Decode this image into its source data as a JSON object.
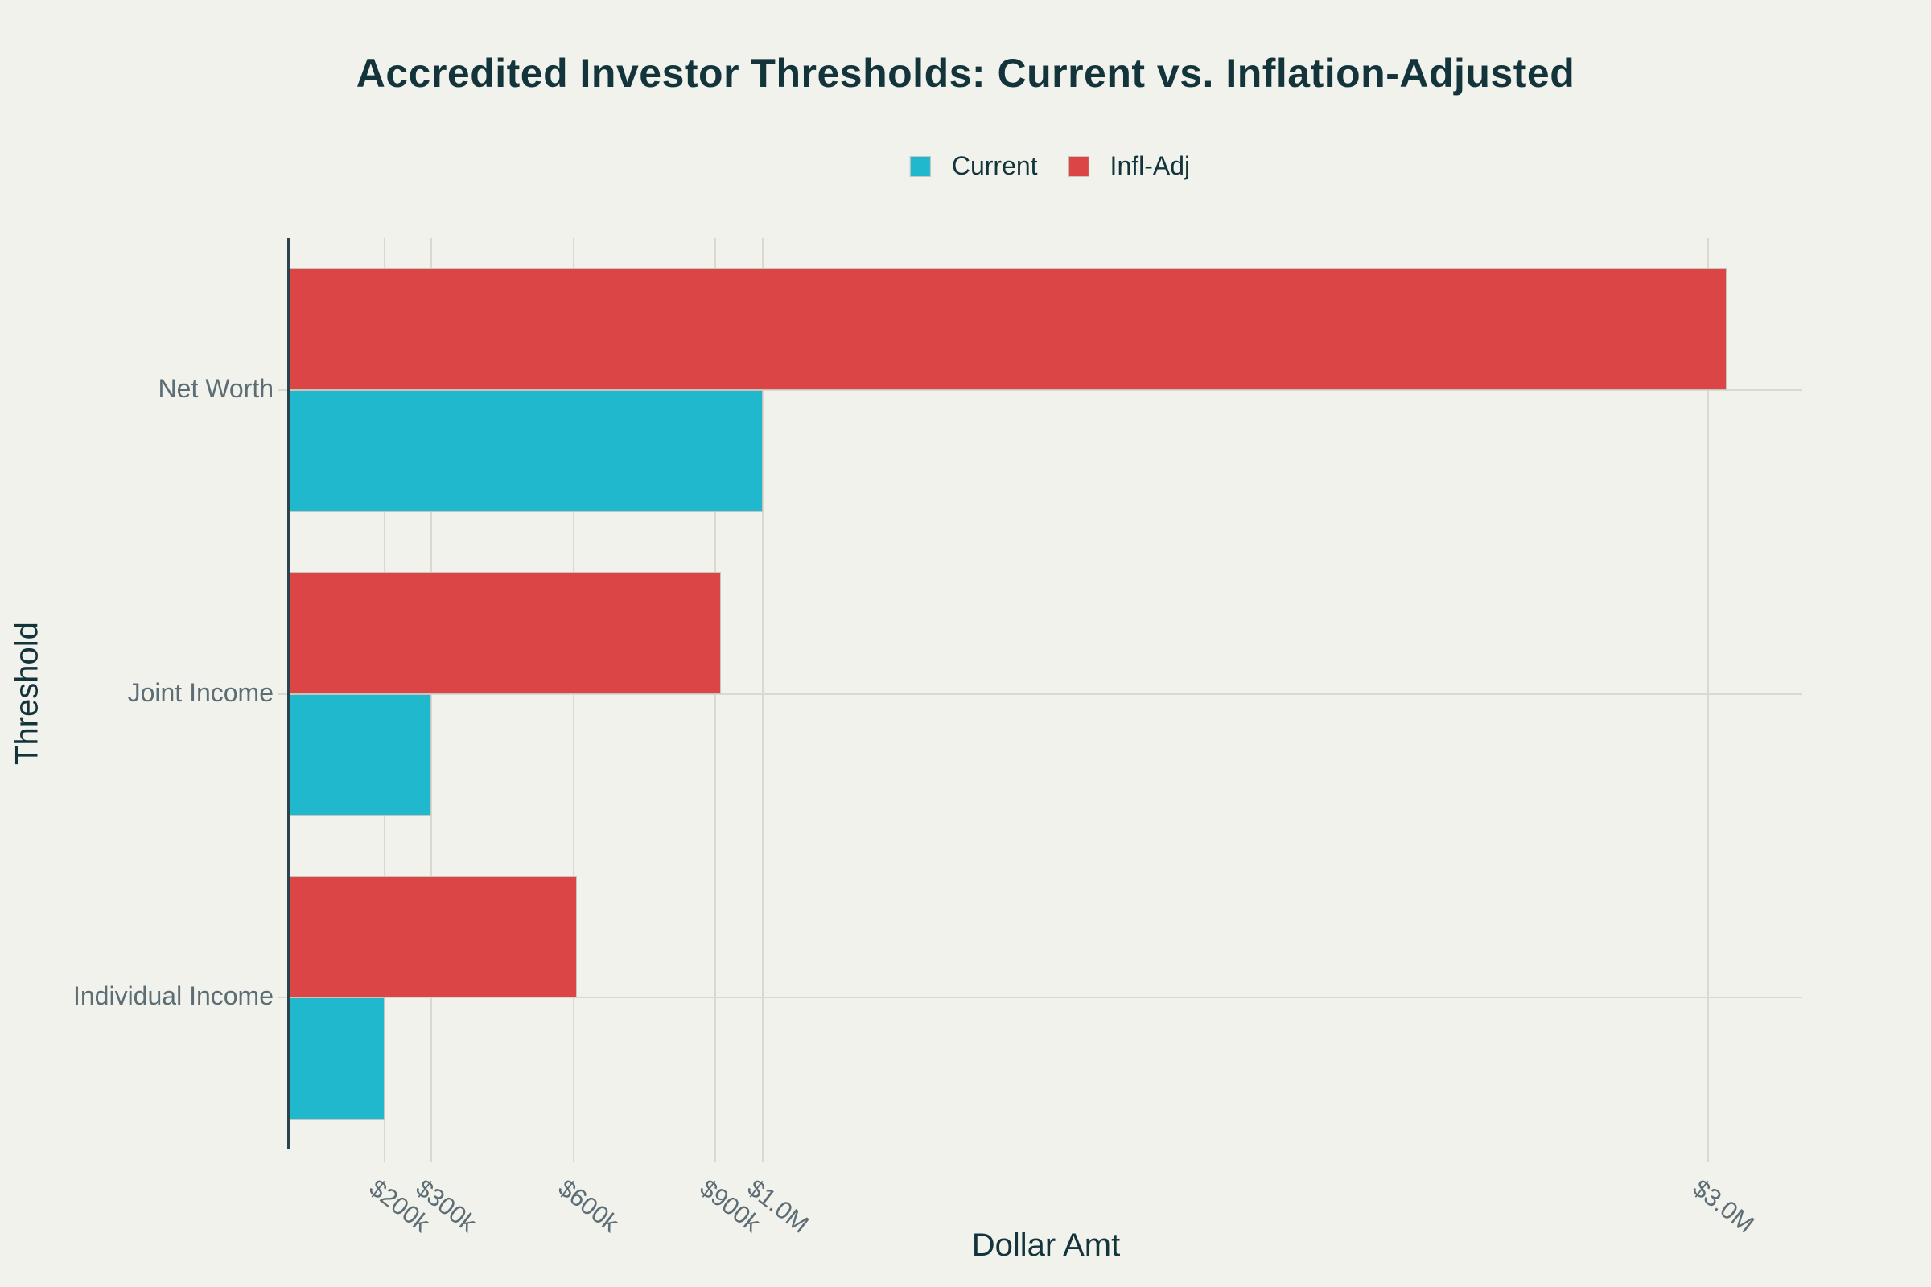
{
  "colors": {
    "background": "#F2F2EC",
    "title_text": "#13343B",
    "axis_title_text": "#13343B",
    "tick_text": "#5D6D75",
    "gridline": "#D9D9D0",
    "axis_line": "#2B434D",
    "bar_border": "#C6C6BE",
    "current_series": "#1FB8CD",
    "infl_adj_series": "#DB4545"
  },
  "chart_data": {
    "type": "bar",
    "orientation": "horizontal",
    "title": "Accredited Investor Thresholds: Current vs. Inflation-Adjusted",
    "xlabel": "Dollar Amt",
    "ylabel": "Threshold",
    "categories": [
      "Net Worth",
      "Joint Income",
      "Individual Income"
    ],
    "series": [
      {
        "name": "Current",
        "color": "#1FB8CD",
        "values_usd_thousands": [
          1000,
          300,
          200
        ]
      },
      {
        "name": "Infl-Adj",
        "color": "#DB4545",
        "values_usd_thousands": [
          3040,
          912,
          608
        ]
      }
    ],
    "x_ticks": [
      {
        "value_k": 200,
        "label": "$200k"
      },
      {
        "value_k": 300,
        "label": "$300k"
      },
      {
        "value_k": 600,
        "label": "$600k"
      },
      {
        "value_k": 900,
        "label": "$900k"
      },
      {
        "value_k": 1000,
        "label": "$1.0M"
      },
      {
        "value_k": 3000,
        "label": "$3.0M"
      }
    ],
    "xlim_thousands": [
      0,
      3200
    ],
    "grid": true,
    "legend_position": "top-center",
    "bar_group_order_top_to_bottom": [
      "Infl-Adj",
      "Current"
    ]
  }
}
